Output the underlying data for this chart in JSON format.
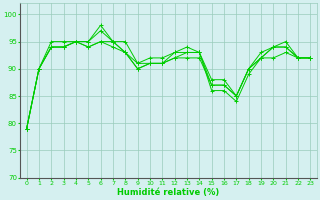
{
  "xlabel": "Humidité relative (%)",
  "xlim": [
    -0.5,
    23.5
  ],
  "ylim": [
    70,
    102
  ],
  "yticks": [
    70,
    75,
    80,
    85,
    90,
    95,
    100
  ],
  "xticks": [
    0,
    1,
    2,
    3,
    4,
    5,
    6,
    7,
    8,
    9,
    10,
    11,
    12,
    13,
    14,
    15,
    16,
    17,
    18,
    19,
    20,
    21,
    22,
    23
  ],
  "line_color": "#00cc00",
  "background_color": "#d5f0f0",
  "grid_color": "#99ccbb",
  "series": [
    [
      79,
      90,
      94,
      94,
      95,
      95,
      97,
      95,
      93,
      90,
      91,
      91,
      93,
      93,
      93,
      86,
      86,
      84,
      89,
      92,
      94,
      94,
      92,
      92
    ],
    [
      79,
      90,
      94,
      94,
      95,
      94,
      95,
      94,
      93,
      90,
      91,
      91,
      92,
      93,
      93,
      87,
      87,
      85,
      90,
      92,
      94,
      94,
      92,
      92
    ],
    [
      79,
      90,
      95,
      95,
      95,
      95,
      98,
      95,
      95,
      91,
      92,
      92,
      93,
      94,
      93,
      88,
      88,
      85,
      90,
      93,
      94,
      95,
      92,
      92
    ],
    [
      79,
      90,
      94,
      94,
      95,
      94,
      95,
      95,
      93,
      91,
      91,
      91,
      92,
      92,
      92,
      87,
      87,
      85,
      90,
      92,
      92,
      93,
      92,
      92
    ]
  ]
}
